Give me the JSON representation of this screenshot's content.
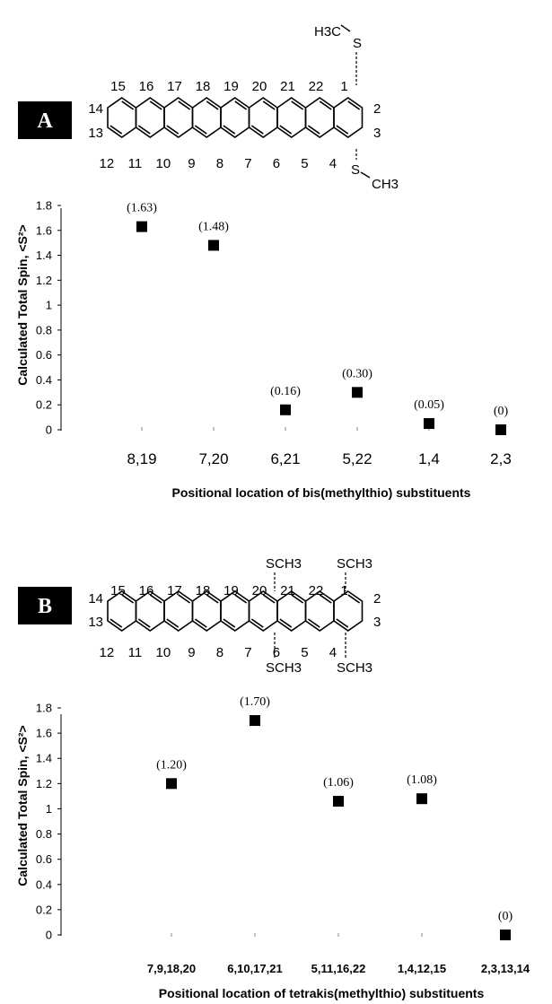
{
  "panel_a": {
    "tag": "A",
    "structure": {
      "top_labels": [
        "15",
        "16",
        "17",
        "18",
        "19",
        "20",
        "21",
        "22",
        "1"
      ],
      "bottom_labels": [
        "12",
        "11",
        "10",
        "9",
        "8",
        "7",
        "6",
        "5",
        "4"
      ],
      "left_labels": [
        "14",
        "13"
      ],
      "right_labels": [
        "2",
        "3"
      ],
      "sub_top_group": "H3C",
      "sub_top_atom": "S",
      "sub_bottom_atom": "S",
      "sub_bottom_group": "CH3"
    }
  },
  "panel_b": {
    "tag": "B",
    "structure": {
      "top_labels": [
        "15",
        "16",
        "17",
        "18",
        "19",
        "20",
        "21",
        "22",
        "1"
      ],
      "bottom_labels": [
        "12",
        "11",
        "10",
        "9",
        "8",
        "7",
        "6",
        "5",
        "4"
      ],
      "left_labels": [
        "14",
        "13"
      ],
      "right_labels": [
        "2",
        "3"
      ],
      "substituent": "SCH3"
    }
  },
  "chart_data": [
    {
      "type": "scatter",
      "ylabel": "Calculated Total Spin, <S²>",
      "xlabel": "Positional location of bis(methylthio) substituents",
      "categories": [
        "8,19",
        "7,20",
        "6,21",
        "5,22",
        "1,4",
        "2,3"
      ],
      "values": [
        1.63,
        1.48,
        0.16,
        0.3,
        0.05,
        0
      ],
      "data_labels": [
        "(1.63)",
        "(1.48)",
        "(0.16)",
        "(0.30)",
        "(0.05)",
        "(0)"
      ],
      "ylim": [
        0,
        1.8
      ],
      "yticks": [
        "0",
        "0.2",
        "0.4",
        "0.6",
        "0.8",
        "1",
        "1.2",
        "1.4",
        "1.6",
        "1.8"
      ],
      "grid": false
    },
    {
      "type": "scatter",
      "ylabel": "Calculated Total Spin, <S²>",
      "xlabel": "Positional location of tetrakis(methylthio) substituents",
      "categories": [
        "7,9,18,20",
        "6,10,17,21",
        "5,11,16,22",
        "1,4,12,15",
        "2,3,13,14"
      ],
      "values": [
        1.2,
        1.7,
        1.06,
        1.08,
        0
      ],
      "data_labels": [
        "(1.20)",
        "(1.70)",
        "(1.06)",
        "(1.08)",
        "(0)"
      ],
      "ylim": [
        0,
        1.8
      ],
      "yticks": [
        "0",
        "0.2",
        "0.4",
        "0.6",
        "0.8",
        "1",
        "1.2",
        "1.4",
        "1.6",
        "1.8"
      ],
      "grid": false
    }
  ]
}
